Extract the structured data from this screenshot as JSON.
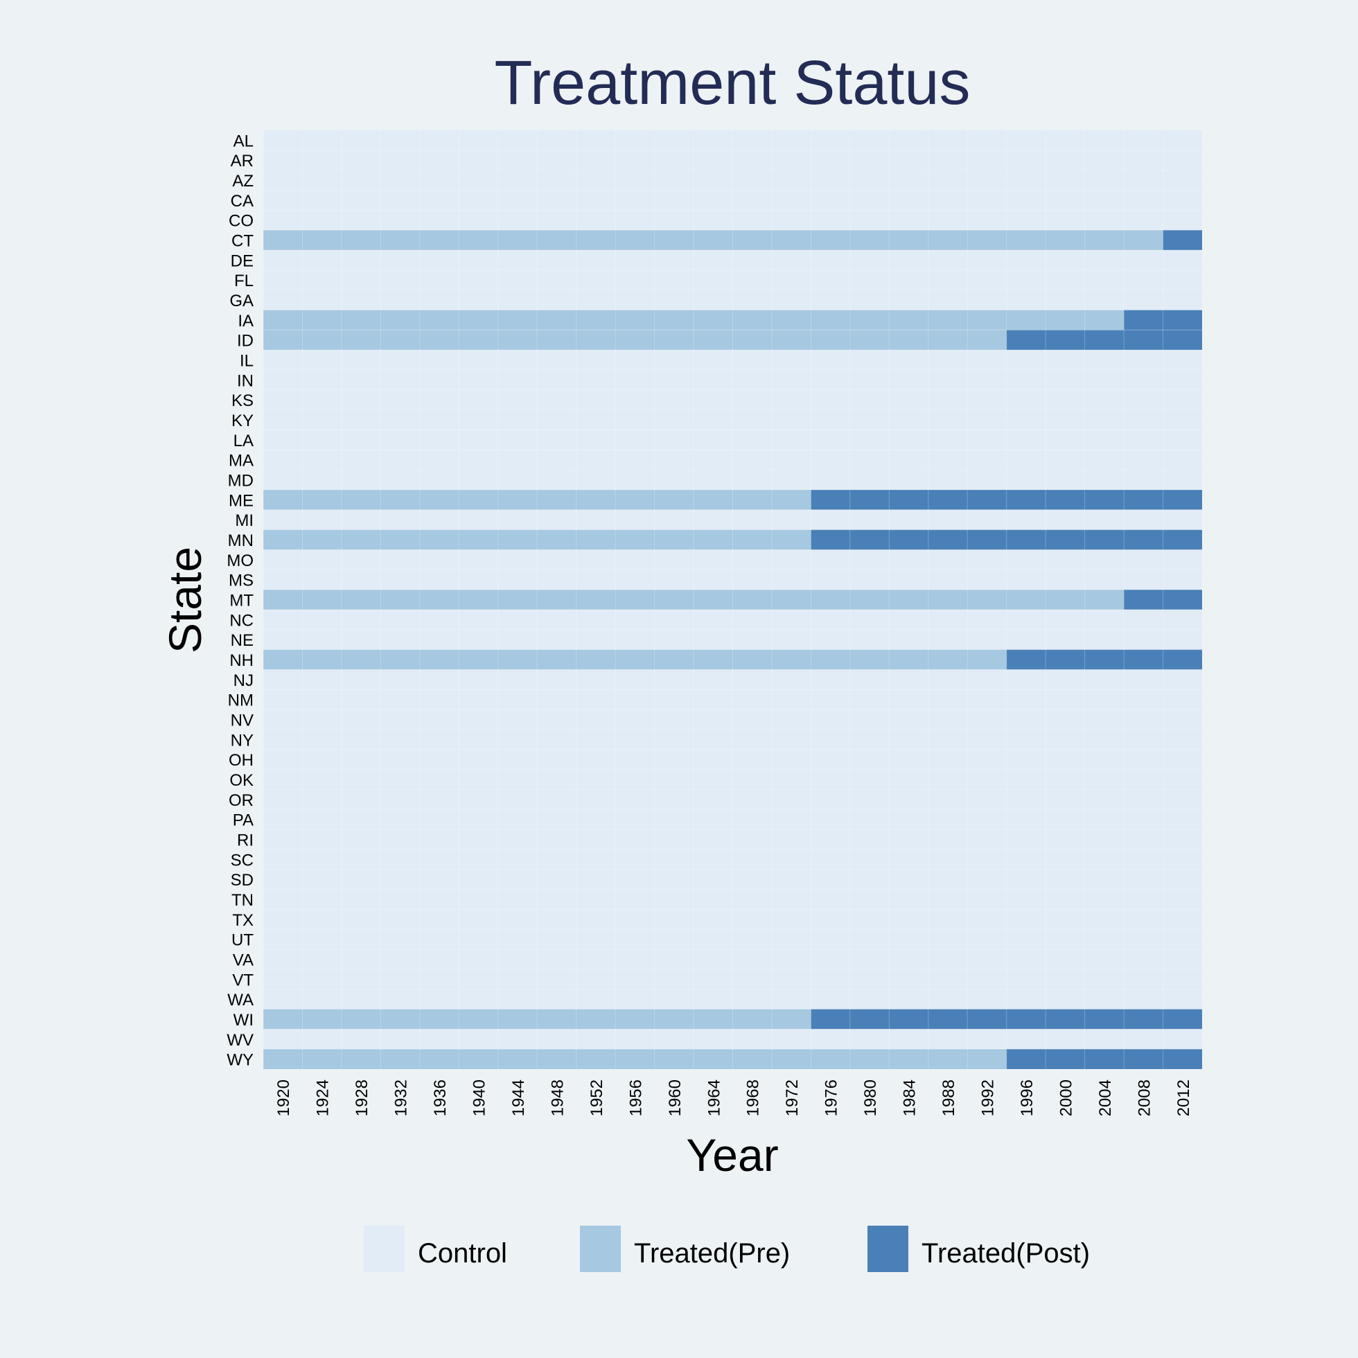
{
  "chart_data": {
    "type": "heatmap",
    "title": "Treatment Status",
    "xlabel": "Year",
    "ylabel": "State",
    "year_range": [
      1918,
      2014
    ],
    "x_ticks": [
      1920,
      1924,
      1928,
      1932,
      1936,
      1940,
      1944,
      1948,
      1952,
      1956,
      1960,
      1964,
      1968,
      1972,
      1976,
      1980,
      1984,
      1988,
      1992,
      1996,
      2000,
      2004,
      2008,
      2012
    ],
    "states": [
      "AL",
      "AR",
      "AZ",
      "CA",
      "CO",
      "CT",
      "DE",
      "FL",
      "GA",
      "IA",
      "ID",
      "IL",
      "IN",
      "KS",
      "KY",
      "LA",
      "MA",
      "MD",
      "ME",
      "MI",
      "MN",
      "MO",
      "MS",
      "MT",
      "NC",
      "NE",
      "NH",
      "NJ",
      "NM",
      "NV",
      "NY",
      "OH",
      "OK",
      "OR",
      "PA",
      "RI",
      "SC",
      "SD",
      "TN",
      "TX",
      "UT",
      "VA",
      "VT",
      "WA",
      "WI",
      "WV",
      "WY"
    ],
    "treated_states": [
      {
        "state": "CT",
        "treatment_start_year": 2010
      },
      {
        "state": "IA",
        "treatment_start_year": 2006
      },
      {
        "state": "ID",
        "treatment_start_year": 1994
      },
      {
        "state": "ME",
        "treatment_start_year": 1974
      },
      {
        "state": "MN",
        "treatment_start_year": 1974
      },
      {
        "state": "MT",
        "treatment_start_year": 2006
      },
      {
        "state": "NH",
        "treatment_start_year": 1994
      },
      {
        "state": "WI",
        "treatment_start_year": 1974
      },
      {
        "state": "WY",
        "treatment_start_year": 1994
      }
    ],
    "categories": [
      "Control",
      "Treated(Pre)",
      "Treated(Post)"
    ],
    "legend": [
      {
        "label": "Control",
        "color": "#e2ecf6"
      },
      {
        "label": "Treated(Pre)",
        "color": "#a6c8e0"
      },
      {
        "label": "Treated(Post)",
        "color": "#4a80b8"
      }
    ],
    "legend_position": "bottom",
    "grid": false
  }
}
